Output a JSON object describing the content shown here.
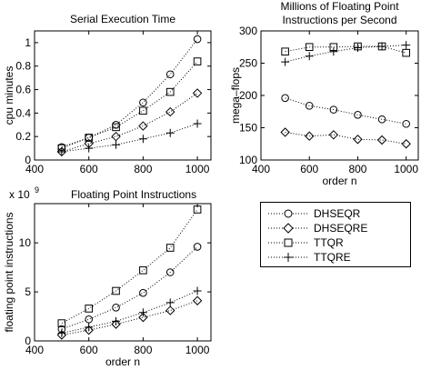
{
  "chart_data": [
    {
      "type": "line",
      "title": "Serial Execution Time",
      "xlabel": "",
      "ylabel": "cpu minutes",
      "x": [
        500,
        600,
        700,
        800,
        900,
        1000
      ],
      "xlim": [
        400,
        1050
      ],
      "ylim": [
        0,
        1.1
      ],
      "xticks": [
        "400",
        "600",
        "800",
        "1000"
      ],
      "yticks": [
        "0",
        "0.2",
        "0.4",
        "0.6",
        "0.8",
        "1"
      ],
      "series": [
        {
          "name": "DHSEQR",
          "marker": "circle",
          "values": [
            0.11,
            0.19,
            0.3,
            0.49,
            0.73,
            1.03
          ]
        },
        {
          "name": "DHSEQRE",
          "marker": "diamond",
          "values": [
            0.07,
            0.14,
            0.2,
            0.29,
            0.41,
            0.57
          ]
        },
        {
          "name": "TTQR",
          "marker": "square",
          "values": [
            0.1,
            0.19,
            0.28,
            0.42,
            0.58,
            0.84
          ]
        },
        {
          "name": "TTQRE",
          "marker": "plus",
          "values": [
            0.07,
            0.1,
            0.13,
            0.18,
            0.23,
            0.31
          ]
        }
      ]
    },
    {
      "type": "line",
      "title": "Millions of Floating Point Instructions per Second",
      "title_lines": [
        "Millions of Floating Point",
        "Instructions per Second"
      ],
      "xlabel": "order n",
      "ylabel": "mega–flops",
      "x": [
        500,
        600,
        700,
        800,
        900,
        1000
      ],
      "xlim": [
        400,
        1050
      ],
      "ylim": [
        100,
        300
      ],
      "xticks": [
        "400",
        "600",
        "800",
        "1000"
      ],
      "yticks": [
        "100",
        "150",
        "200",
        "250",
        "300"
      ],
      "series": [
        {
          "name": "DHSEQR",
          "marker": "circle",
          "values": [
            196,
            184,
            178,
            170,
            163,
            156
          ]
        },
        {
          "name": "DHSEQRE",
          "marker": "diamond",
          "values": [
            143,
            137,
            139,
            132,
            131,
            125
          ]
        },
        {
          "name": "TTQR",
          "marker": "square",
          "values": [
            268,
            275,
            275,
            276,
            276,
            266
          ]
        },
        {
          "name": "TTQRE",
          "marker": "plus",
          "values": [
            252,
            261,
            268,
            274,
            276,
            278
          ]
        }
      ]
    },
    {
      "type": "line",
      "title": "Floating Point Instructions",
      "exponent_label": "x 10",
      "exponent": "9",
      "xlabel": "order n",
      "ylabel": "floating point instructions",
      "x": [
        500,
        600,
        700,
        800,
        900,
        1000
      ],
      "xlim": [
        400,
        1050
      ],
      "ylim": [
        0,
        14
      ],
      "xticks": [
        "400",
        "600",
        "800",
        "1000"
      ],
      "yticks": [
        "0",
        "5",
        "10"
      ],
      "series": [
        {
          "name": "DHSEQR",
          "marker": "circle",
          "values": [
            1.2,
            2.2,
            3.4,
            4.9,
            7.0,
            9.6
          ]
        },
        {
          "name": "DHSEQRE",
          "marker": "diamond",
          "values": [
            0.6,
            1.1,
            1.7,
            2.4,
            3.1,
            4.1
          ]
        },
        {
          "name": "TTQR",
          "marker": "square",
          "values": [
            1.8,
            3.3,
            5.1,
            7.2,
            9.5,
            13.4
          ]
        },
        {
          "name": "TTQRE",
          "marker": "plus",
          "values": [
            0.8,
            1.4,
            2.0,
            2.9,
            3.9,
            5.1
          ]
        }
      ]
    }
  ],
  "legend": {
    "entries": [
      {
        "label": "DHSEQR",
        "marker": "circle"
      },
      {
        "label": "DHSEQRE",
        "marker": "diamond"
      },
      {
        "label": "TTQR",
        "marker": "square"
      },
      {
        "label": "TTQRE",
        "marker": "plus"
      }
    ]
  }
}
